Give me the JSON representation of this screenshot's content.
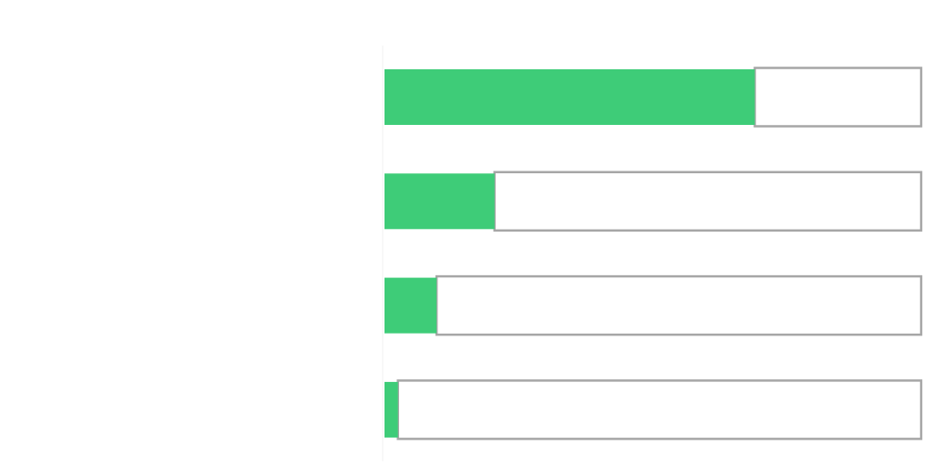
{
  "chart_data": {
    "type": "bar",
    "orientation": "horizontal",
    "title": "",
    "xlabel": "",
    "ylabel": "",
    "categories": [
      "",
      "",
      "",
      ""
    ],
    "values": [
      0.69,
      0.205,
      0.097,
      0.025
    ],
    "xlim": [
      0,
      1
    ],
    "grid": false,
    "legend": "none",
    "colors": {
      "fill": "#3ecc78",
      "remainder_border": "#a6a6a6",
      "remainder_fill": "#ffffff",
      "axis": "#f2f2f2"
    }
  }
}
